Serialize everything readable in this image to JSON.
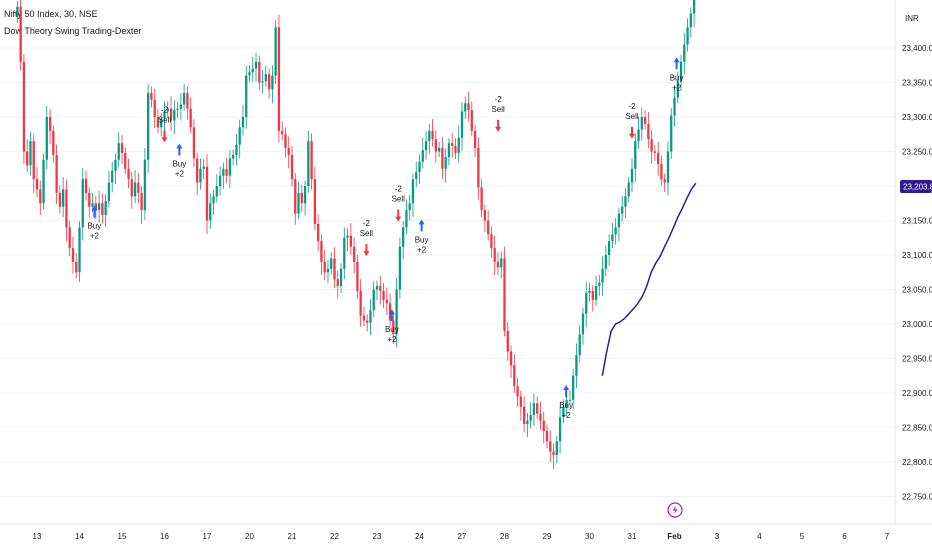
{
  "header": {
    "symbol_line": "Nifty 50 Index, 30, NSE",
    "indicator_line": "Dow Theory Swing Trading-Dexter"
  },
  "price_axis": {
    "currency": "INR",
    "current_price_label": "23,203.80"
  },
  "event_marker": {
    "icon": "lightning-icon",
    "color": "#9c27b0"
  },
  "colors": {
    "up_candle": "#089981",
    "down_candle": "#f23645",
    "moving_average": "#311b92",
    "buy_arrow": "#2962ff",
    "sell_arrow": "#f23645",
    "price_label_bg": "#311b92",
    "grid": "#f0f3fa"
  },
  "chart_data": {
    "type": "candlestick",
    "title": "Nifty 50 Index, 30, NSE",
    "subtitle": "Dow Theory Swing Trading-Dexter",
    "interval": "30",
    "xlabel": "",
    "ylabel": "",
    "ylim": [
      22720,
      23500
    ],
    "grid": true,
    "y_ticks": [
      "22,750.00",
      "22,800.00",
      "22,850.00",
      "22,900.00",
      "22,950.00",
      "23,000.00",
      "23,050.00",
      "23,100.00",
      "23,150.00",
      "23,200.00",
      "23,250.00",
      "23,300.00",
      "23,350.00",
      "23,400.00"
    ],
    "y_tick_values": [
      22750,
      22800,
      22850,
      22900,
      22950,
      23000,
      23050,
      23100,
      23150,
      23200,
      23250,
      23300,
      23350,
      23400
    ],
    "x_ticks": [
      "13",
      "14",
      "15",
      "16",
      "17",
      "20",
      "21",
      "22",
      "23",
      "24",
      "27",
      "28",
      "29",
      "30",
      "31",
      "Feb",
      "3",
      "4",
      "5",
      "6",
      "7"
    ],
    "x_tick_session_index": [
      0,
      1,
      2,
      3,
      4,
      5,
      6,
      7,
      8,
      9,
      10,
      11,
      12,
      13,
      14,
      15,
      16,
      17,
      18,
      19,
      20
    ],
    "bars_per_session": 13,
    "candles": [
      {
        "s": 0,
        "closes": [
          23460,
          23380,
          23250,
          23230,
          23265,
          23210,
          23195,
          23175,
          23238,
          23300,
          23280,
          23245,
          23190
        ]
      },
      {
        "s": 1,
        "closes": [
          23170,
          23195,
          23140,
          23110,
          23090,
          23075,
          23140,
          23210,
          23190,
          23170,
          23175,
          23165,
          23175
        ]
      },
      {
        "s": 2,
        "closes": [
          23158,
          23178,
          23205,
          23222,
          23238,
          23262,
          23248,
          23225,
          23210,
          23185,
          23205,
          23190,
          23165
        ]
      },
      {
        "s": 3,
        "closes": [
          23238,
          23335,
          23325,
          23300,
          23285,
          23298,
          23308,
          23312,
          23295,
          23310,
          23312,
          23318,
          23335
        ]
      },
      {
        "s": 4,
        "closes": [
          23312,
          23285,
          23240,
          23205,
          23225,
          23228,
          23150,
          23175,
          23185,
          23200,
          23215,
          23225,
          23215
        ]
      },
      {
        "s": 5,
        "closes": [
          23240,
          23245,
          23260,
          23285,
          23300,
          23360,
          23365,
          23370,
          23380,
          23350,
          23352,
          23362,
          23340
        ]
      },
      {
        "s": 6,
        "closes": [
          23360,
          23430,
          23280,
          23275,
          23255,
          23245,
          23210,
          23160,
          23190,
          23175,
          23200,
          23265,
          23210
        ]
      },
      {
        "s": 7,
        "closes": [
          23145,
          23120,
          23090,
          23075,
          23080,
          23095,
          23065,
          23055,
          23080,
          23125,
          23128,
          23112,
          23090
        ]
      },
      {
        "s": 8,
        "closes": [
          23048,
          23012,
          23005,
          23002,
          23020,
          23050,
          23055,
          23048,
          23035,
          23030,
          23005,
          22985,
          23050
        ]
      },
      {
        "s": 9,
        "closes": [
          23112,
          23140,
          23165,
          23175,
          23210,
          23220,
          23235,
          23252,
          23265,
          23280,
          23268,
          23250,
          23255
        ]
      },
      {
        "s": 10,
        "closes": [
          23225,
          23242,
          23262,
          23258,
          23248,
          23270,
          23308,
          23320,
          23310,
          23280,
          23255,
          23198,
          23165
        ]
      },
      {
        "s": 11,
        "closes": [
          23150,
          23130,
          23110,
          23090,
          23082,
          23095,
          22990,
          22960,
          22940,
          22910,
          22895,
          22880,
          22855
        ]
      },
      {
        "s": 12,
        "closes": [
          22860,
          22868,
          22885,
          22870,
          22860,
          22845,
          22830,
          22815,
          22810,
          22830,
          22865,
          22880,
          22890
        ]
      },
      {
        "s": 13,
        "closes": [
          22890,
          22925,
          22955,
          22985,
          23015,
          23045,
          23048,
          23035,
          23055,
          23060,
          23080,
          23100,
          23120
        ]
      },
      {
        "s": 14,
        "closes": [
          23130,
          23140,
          23160,
          23170,
          23185,
          23205,
          23225,
          23265,
          23282,
          23300,
          23290,
          23268,
          23250
        ]
      },
      {
        "s": 15,
        "closes": [
          23248,
          23232,
          23210,
          23205,
          23250,
          23302,
          23328,
          23352,
          23380,
          23405,
          23430,
          23450,
          23475
        ]
      }
    ],
    "candle_series_used_sessions": 16,
    "moving_average_start_session": 13.3,
    "moving_average": [
      22925,
      22960,
      22990,
      23000,
      23003,
      23008,
      23015,
      23022,
      23030,
      23040,
      23055,
      23075,
      23088,
      23098,
      23112,
      23125,
      23140,
      23155,
      23168,
      23182,
      23195,
      23204
    ],
    "signals": [
      {
        "type": "buy",
        "label": "Buy",
        "qty": "+2",
        "session_pos": 1.35,
        "price": 23160
      },
      {
        "type": "sell",
        "label": "Sell",
        "qty": "-2",
        "session_pos": 3.0,
        "price": 23275
      },
      {
        "type": "buy",
        "label": "Buy",
        "qty": "+2",
        "session_pos": 3.35,
        "price": 23250
      },
      {
        "type": "sell",
        "label": "Sell",
        "qty": "-2",
        "session_pos": 7.75,
        "price": 23110
      },
      {
        "type": "buy",
        "label": "Buy",
        "qty": "+2",
        "session_pos": 8.35,
        "price": 23010
      },
      {
        "type": "sell",
        "label": "Sell",
        "qty": "-2",
        "session_pos": 8.5,
        "price": 23160
      },
      {
        "type": "buy",
        "label": "Buy",
        "qty": "+2",
        "session_pos": 9.05,
        "price": 23140
      },
      {
        "type": "sell",
        "label": "Sell",
        "qty": "-2",
        "session_pos": 10.85,
        "price": 23290
      },
      {
        "type": "buy",
        "label": "Buy",
        "qty": "+2",
        "session_pos": 12.45,
        "price": 22900
      },
      {
        "type": "sell",
        "label": "Sell",
        "qty": "-2",
        "session_pos": 14.0,
        "price": 23280
      },
      {
        "type": "buy",
        "label": "Buy",
        "qty": "+2",
        "session_pos": 15.05,
        "price": 23375
      }
    ]
  }
}
